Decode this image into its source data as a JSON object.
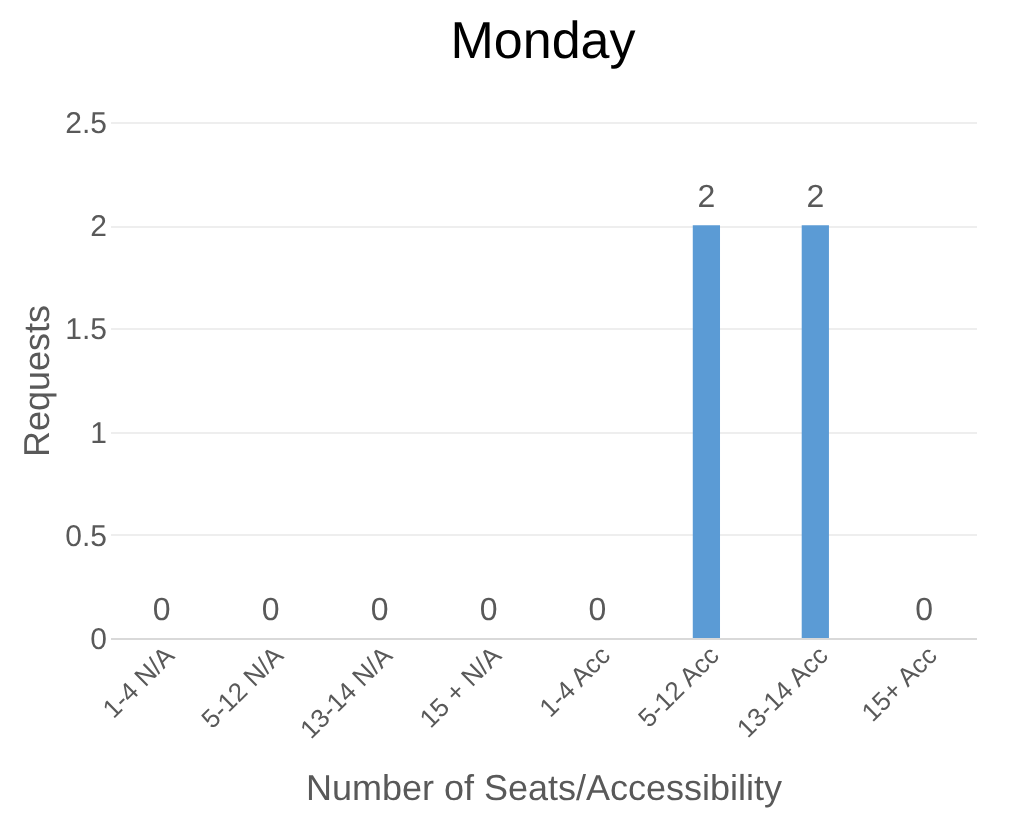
{
  "chart_data": {
    "type": "bar",
    "title": "Monday",
    "xlabel": "Number of Seats/Accessibility",
    "ylabel": "Requests",
    "categories": [
      "1-4 N/A",
      "5-12 N/A",
      "13-14 N/A",
      "15 + N/A",
      "1-4 Acc",
      "5-12 Acc",
      "13-14 Acc",
      "15+ Acc"
    ],
    "values": [
      0,
      0,
      0,
      0,
      0,
      2,
      2,
      0
    ],
    "color": "#5b9bd5",
    "ylim": [
      0,
      2.5
    ],
    "yticks": [
      0,
      0.5,
      1,
      1.5,
      2,
      2.5
    ],
    "grid": "y",
    "data_labels": true
  }
}
